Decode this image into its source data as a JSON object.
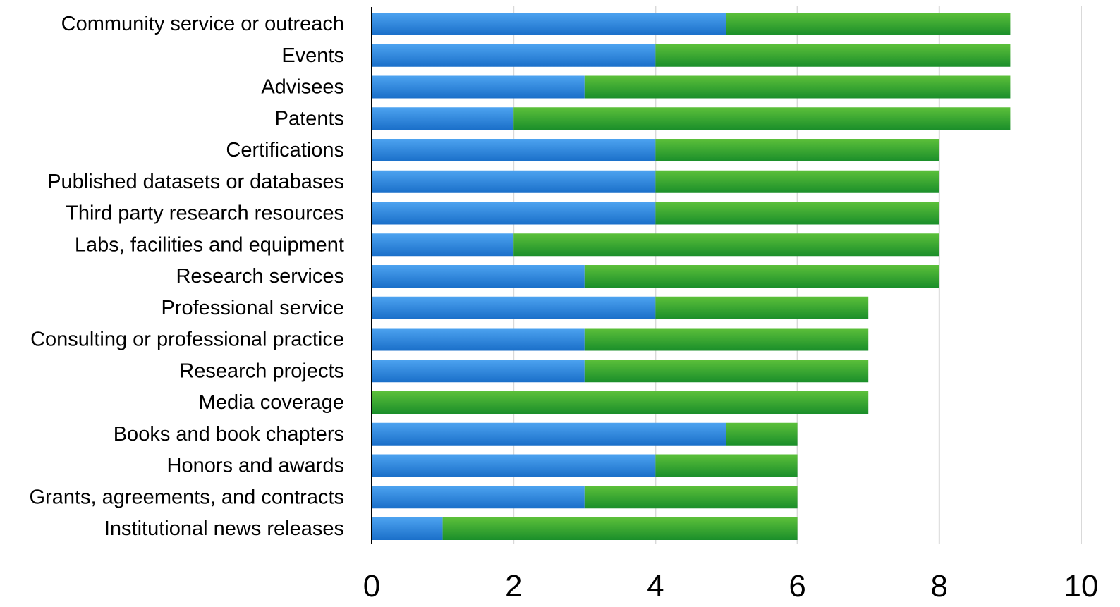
{
  "chart_data": {
    "type": "bar",
    "orientation": "horizontal",
    "stacked": true,
    "categories": [
      "Community service or outreach",
      "Events",
      "Advisees",
      "Patents",
      "Certifications",
      "Published datasets or databases",
      "Third party research resources",
      "Labs, facilities and equipment",
      "Research services",
      "Professional service",
      "Consulting or professional practice",
      "Research projects",
      "Media coverage",
      "Books and book chapters",
      "Honors and awards",
      "Grants, agreements, and contracts",
      "Institutional news releases"
    ],
    "series": [
      {
        "color": "#2e86de",
        "values": [
          5,
          4,
          3,
          2,
          4,
          4,
          4,
          2,
          3,
          4,
          3,
          3,
          0,
          5,
          4,
          3,
          1
        ]
      },
      {
        "color": "#2ea12e",
        "values": [
          4,
          5,
          6,
          7,
          4,
          4,
          4,
          6,
          5,
          3,
          4,
          4,
          7,
          1,
          2,
          3,
          5
        ]
      }
    ],
    "xlim": [
      0,
      10
    ],
    "xticks": [
      "0",
      "2",
      "4",
      "6",
      "8",
      "10"
    ],
    "grid": true,
    "legend": "none",
    "title": "",
    "xlabel": "",
    "ylabel": ""
  }
}
